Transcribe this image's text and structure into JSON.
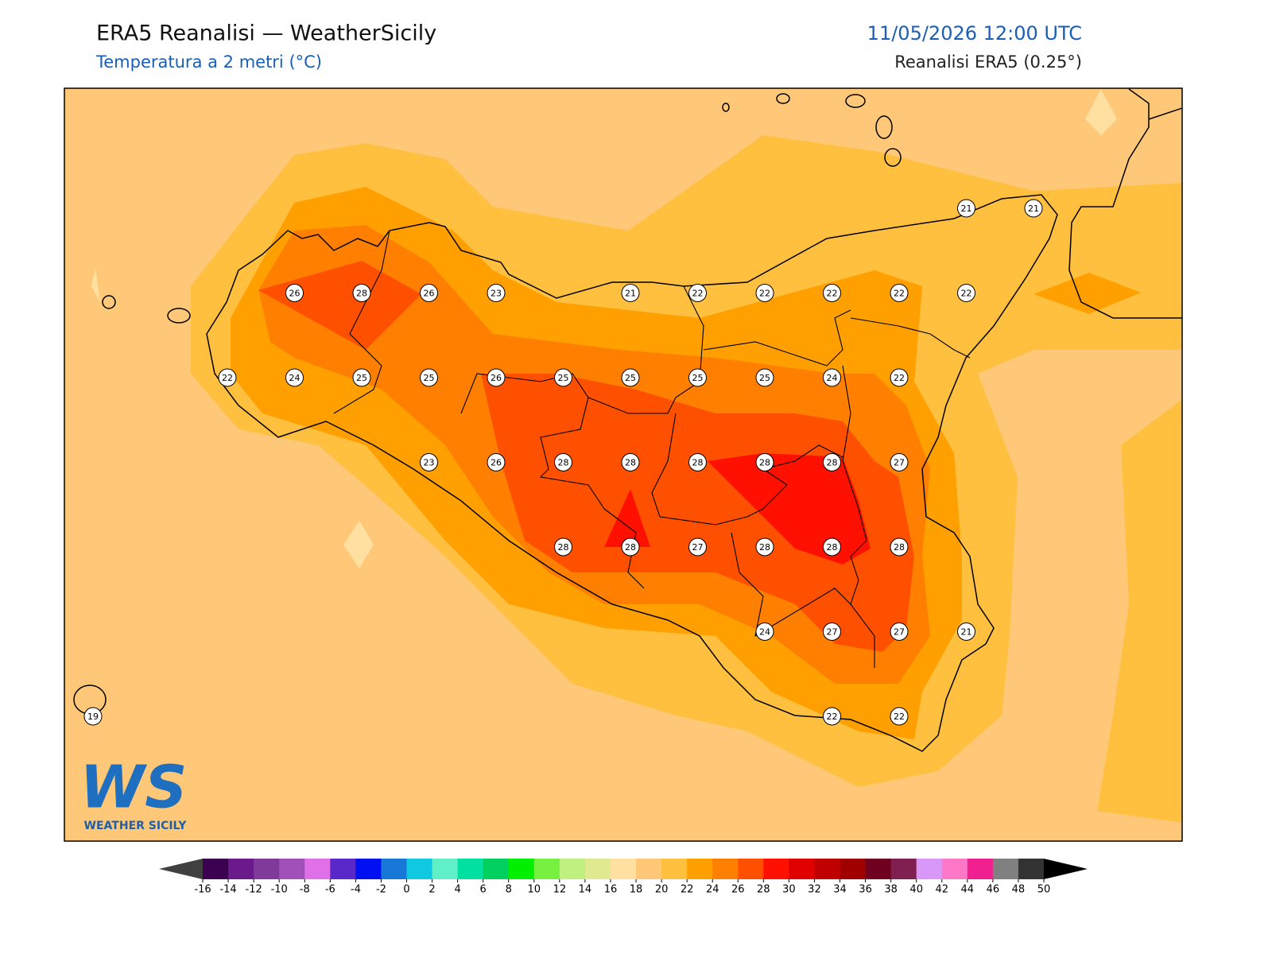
{
  "header": {
    "title": "ERA5 Reanalisi — WeatherSicily",
    "subtitle": "Temperatura a 2 metri (°C)",
    "datetime": "11/05/2026 12:00 UTC",
    "source": "Reanalisi ERA5 (0.25°)"
  },
  "map": {
    "grid": [
      [
        null,
        null,
        null,
        null,
        null,
        null,
        null,
        null,
        null,
        null,
        null,
        null,
        null,
        21,
        21
      ],
      [
        null,
        null,
        null,
        26,
        28,
        26,
        23,
        null,
        21,
        22,
        22,
        22,
        22,
        22,
        null
      ],
      [
        null,
        null,
        22,
        24,
        25,
        25,
        26,
        25,
        25,
        25,
        25,
        24,
        22,
        null,
        null
      ],
      [
        null,
        null,
        null,
        null,
        null,
        23,
        26,
        28,
        28,
        28,
        28,
        28,
        27,
        null,
        null
      ],
      [
        null,
        null,
        null,
        null,
        null,
        null,
        null,
        28,
        28,
        27,
        28,
        28,
        28,
        null,
        null
      ],
      [
        null,
        null,
        null,
        null,
        null,
        null,
        null,
        null,
        null,
        null,
        24,
        27,
        27,
        21,
        null
      ],
      [
        19,
        null,
        null,
        null,
        null,
        null,
        null,
        null,
        null,
        null,
        null,
        22,
        22,
        null,
        null
      ]
    ]
  },
  "colorbar": {
    "ticks": [
      -16,
      -14,
      -12,
      -10,
      -8,
      -6,
      -4,
      -2,
      0,
      2,
      4,
      6,
      8,
      10,
      12,
      14,
      16,
      18,
      20,
      22,
      24,
      26,
      28,
      30,
      32,
      34,
      36,
      38,
      40,
      42,
      44,
      46,
      48,
      50
    ],
    "colors": [
      "#3b0050",
      "#6a1a8a",
      "#7f3a9a",
      "#a050b8",
      "#e070e8",
      "#5a28c8",
      "#0010f0",
      "#1878d8",
      "#10c8e0",
      "#60f0c8",
      "#00e0a0",
      "#00d060",
      "#00f000",
      "#78f040",
      "#c0f080",
      "#e0e890",
      "#ffe0a0",
      "#ffc878",
      "#ffc040",
      "#ffa000",
      "#ff8000",
      "#ff5000",
      "#ff1000",
      "#e00000",
      "#c00000",
      "#a00000",
      "#700020",
      "#802050",
      "#d898f8",
      "#ff78c8",
      "#f02090",
      "#808080",
      "#333333"
    ],
    "under_color": "#404040",
    "over_color": "#000000"
  },
  "logo": {
    "mark": "WS",
    "name": "WEATHER SICILY"
  }
}
